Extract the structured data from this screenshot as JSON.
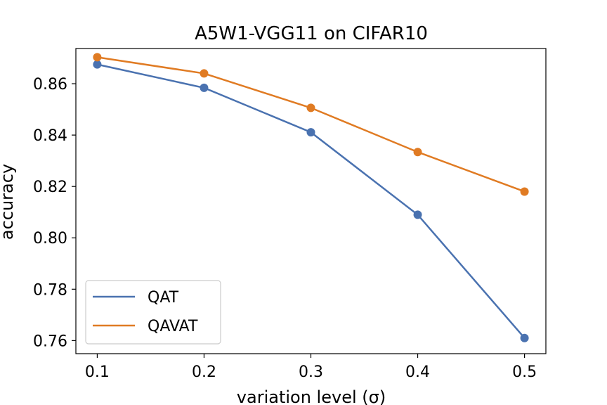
{
  "chart_data": {
    "type": "line",
    "title": "A5W1-VGG11 on CIFAR10",
    "xlabel": "variation level (σ)",
    "ylabel": "accuracy",
    "x": [
      0.1,
      0.2,
      0.3,
      0.4,
      0.5
    ],
    "x_ticks": [
      "0.1",
      "0.2",
      "0.3",
      "0.4",
      "0.5"
    ],
    "y_ticks": [
      "0.76",
      "0.78",
      "0.80",
      "0.82",
      "0.84",
      "0.86"
    ],
    "xlim": [
      0.08,
      0.52
    ],
    "ylim": [
      0.7549,
      0.8737
    ],
    "grid": false,
    "legend_position": "lower-left",
    "series": [
      {
        "name": "QAT",
        "color": "#4a72b0",
        "values": [
          0.8675,
          0.8584,
          0.8411,
          0.809,
          0.761
        ]
      },
      {
        "name": "QAVAT",
        "color": "#e07b23",
        "values": [
          0.8703,
          0.864,
          0.8506,
          0.8334,
          0.818
        ]
      }
    ]
  }
}
